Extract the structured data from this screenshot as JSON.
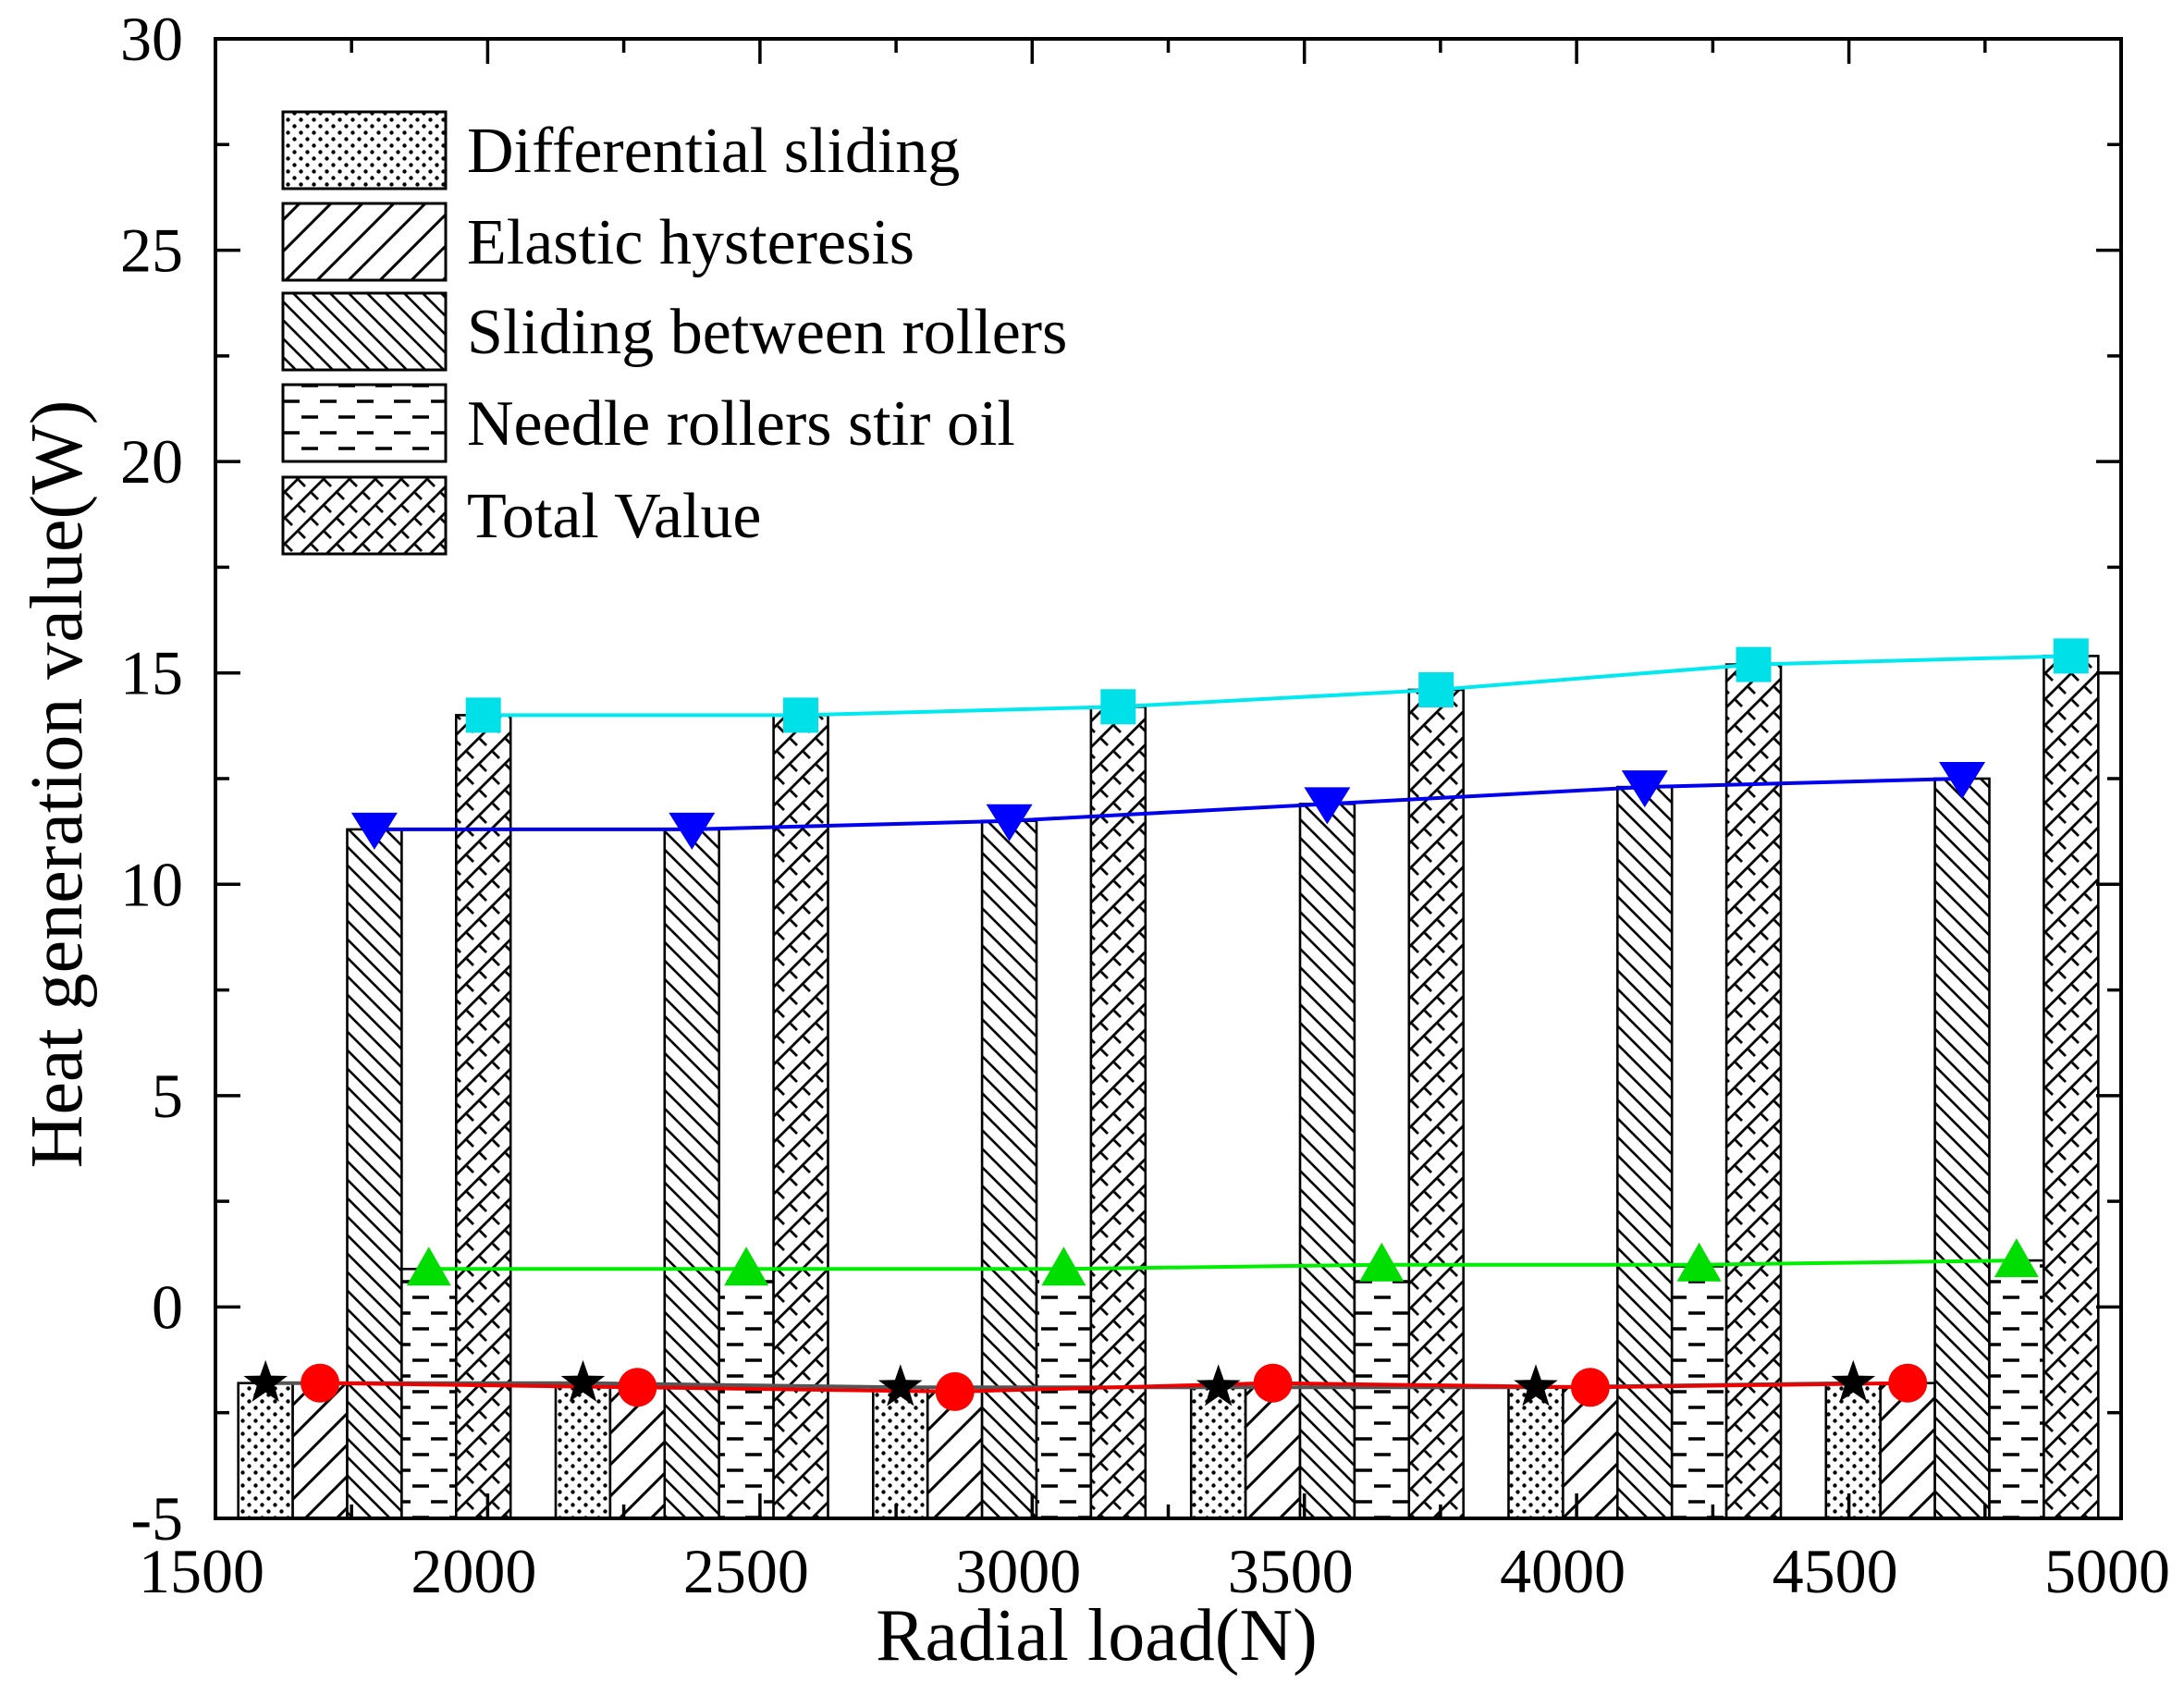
{
  "chart_data": {
    "type": "bar",
    "xlabel": "Radial load(N)",
    "ylabel": "Heat generation value(W)",
    "xlim": [
      1500,
      5000
    ],
    "ylim": [
      -5,
      30
    ],
    "xticks": [
      1500,
      2000,
      2500,
      3000,
      3500,
      4000,
      4500,
      5000
    ],
    "yticks": [
      30,
      25,
      20,
      15,
      10,
      5,
      0,
      -5
    ],
    "grid": false,
    "legend_position": "top-left",
    "x": [
      1792,
      2375,
      2958,
      3542,
      4125,
      4708
    ],
    "series": [
      {
        "name": "Differential sliding",
        "marker": "star",
        "marker_color": "#000000",
        "line_color": "#555555",
        "values": [
          -1.8,
          -1.8,
          -1.9,
          -1.9,
          -1.9,
          -1.8
        ]
      },
      {
        "name": "Elastic hysteresis",
        "marker": "circle",
        "marker_color": "#ff0000",
        "line_color": "#ee0000",
        "values": [
          -1.8,
          -1.9,
          -2.0,
          -1.8,
          -1.9,
          -1.8
        ]
      },
      {
        "name": "Sliding between rollers",
        "marker": "triangle-down",
        "marker_color": "#0000ff",
        "line_color": "#0000ee",
        "values": [
          11.3,
          11.3,
          11.5,
          11.9,
          12.3,
          12.5
        ]
      },
      {
        "name": "Needle rollers stir oil",
        "marker": "triangle-up",
        "marker_color": "#00dd00",
        "line_color": "#00ee00",
        "values": [
          0.9,
          0.9,
          0.9,
          1.0,
          1.0,
          1.1
        ]
      },
      {
        "name": "Total Value",
        "marker": "square",
        "marker_color": "#00e0e8",
        "line_color": "#00e8f0",
        "values": [
          14.0,
          14.0,
          14.2,
          14.6,
          15.2,
          15.4
        ]
      }
    ]
  }
}
